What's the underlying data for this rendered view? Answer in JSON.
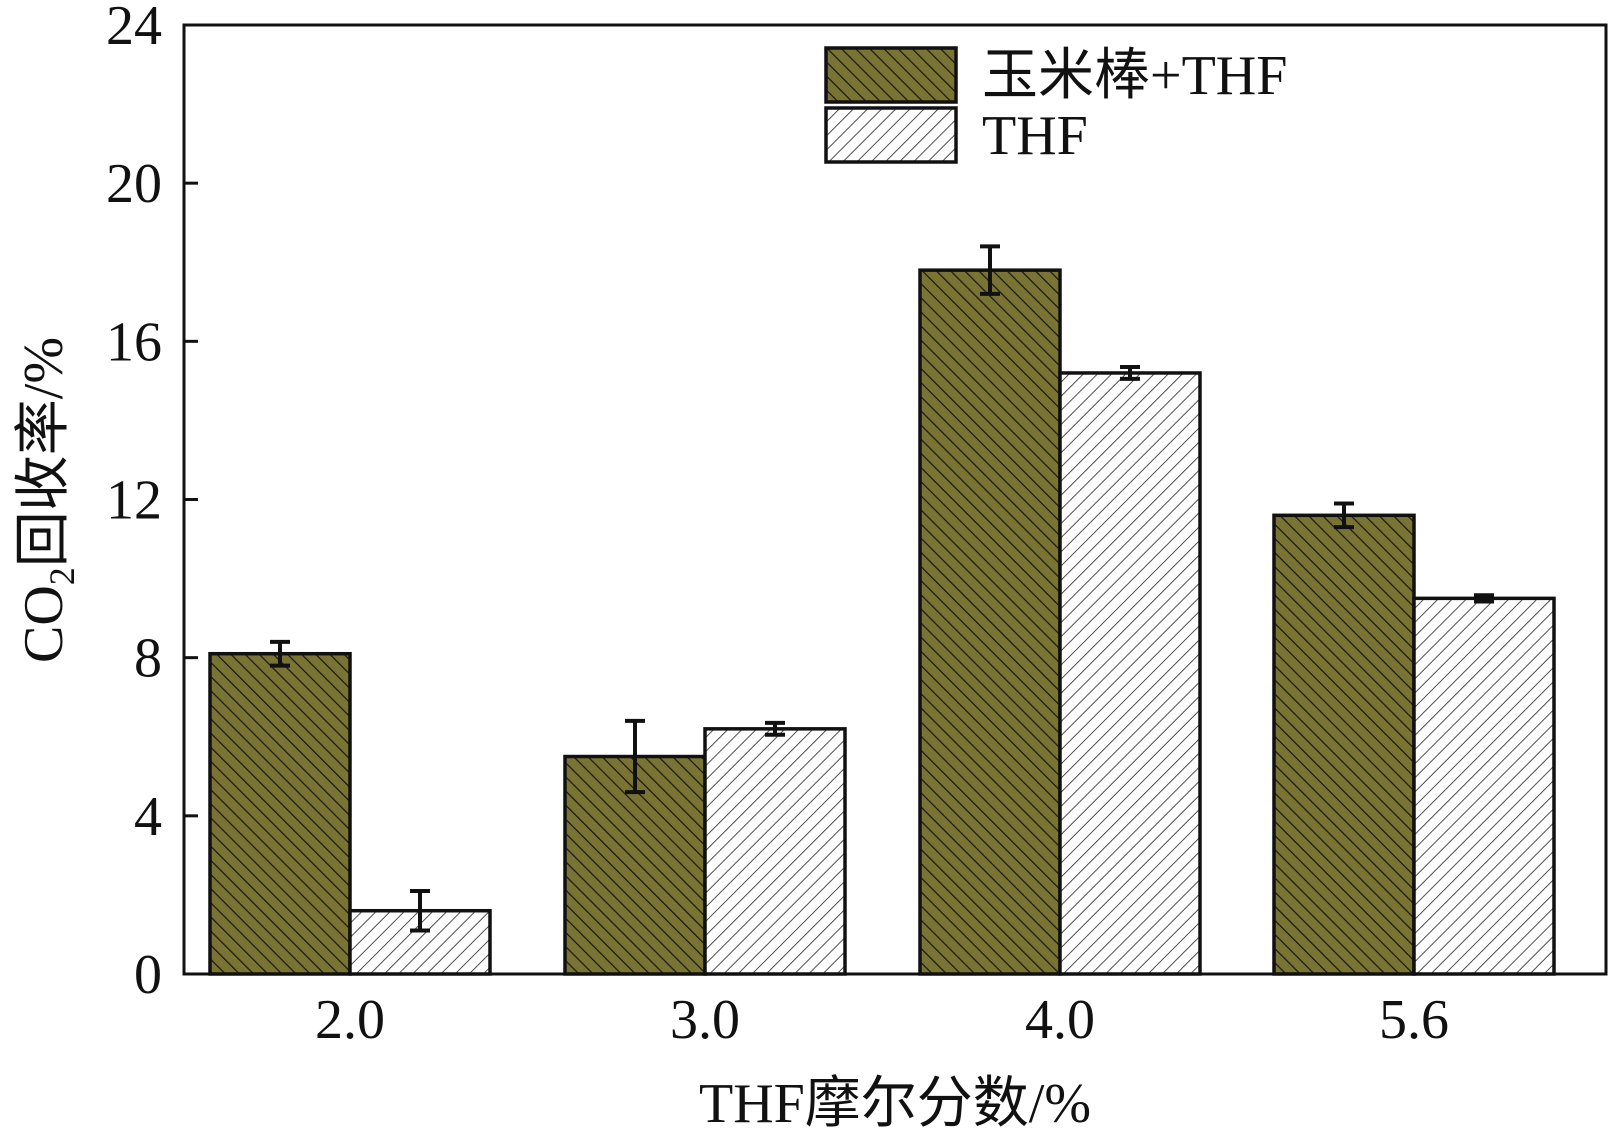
{
  "chart_data": {
    "type": "bar",
    "title": "",
    "xlabel": "THF摩尔分数/%",
    "ylabel_main": "CO",
    "ylabel_sub": "2",
    "ylabel_rest": "回收率/%",
    "categories": [
      "2.0",
      "3.0",
      "4.0",
      "5.6"
    ],
    "ylim": [
      0,
      24
    ],
    "yticks": [
      "0",
      "4",
      "8",
      "12",
      "16",
      "20",
      "24"
    ],
    "grid": false,
    "legend_position": "top-right",
    "series": [
      {
        "name": "玉米棒+THF",
        "values": [
          8.1,
          5.5,
          17.8,
          11.6
        ],
        "errors": [
          0.3,
          0.9,
          0.6,
          0.3
        ],
        "fill": "#7a7434",
        "hatch": "#1a1a10"
      },
      {
        "name": "THF",
        "values": [
          1.6,
          6.2,
          15.2,
          9.5
        ],
        "errors": [
          0.5,
          0.15,
          0.15,
          0.08
        ],
        "fill": "#ffffff",
        "hatch": "#3a3a3a"
      }
    ]
  }
}
